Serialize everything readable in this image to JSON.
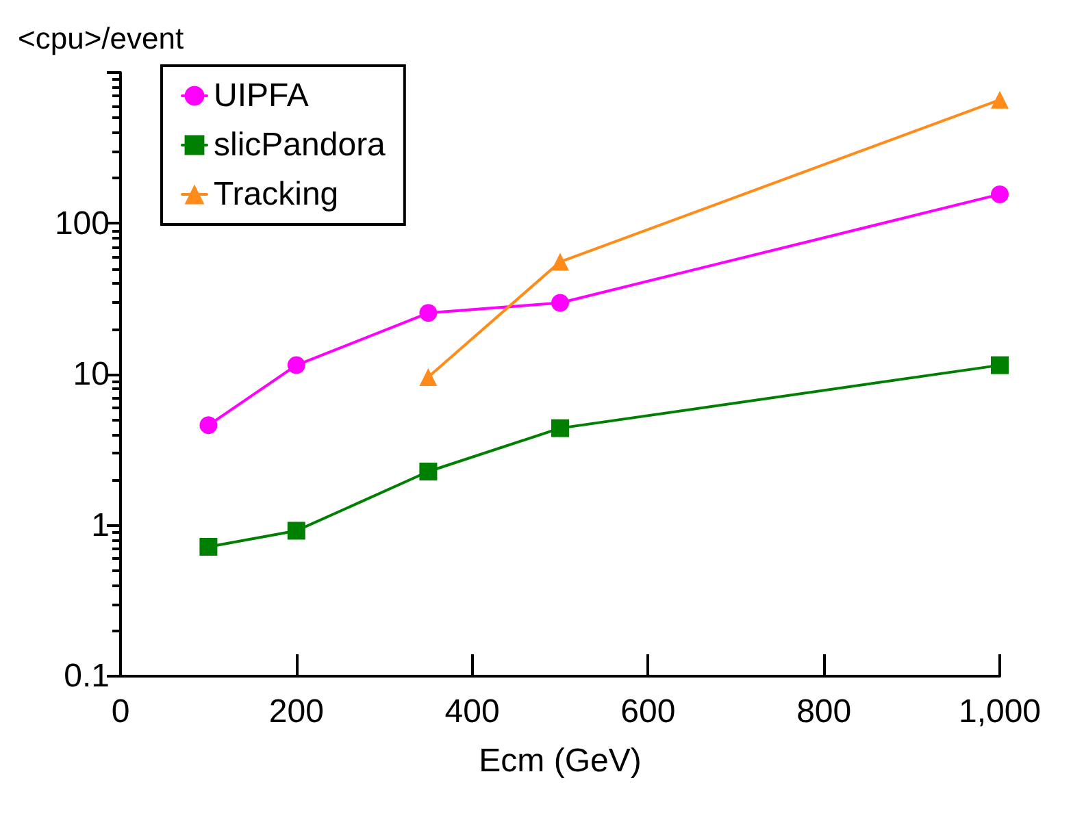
{
  "chart_data": {
    "type": "line",
    "ylabel": "<cpu>/event",
    "xlabel": "Ecm (GeV)",
    "x": [
      100,
      200,
      350,
      500,
      1000
    ],
    "log": "y",
    "grid": false,
    "legend": "top left",
    "xlim": [
      0,
      1000
    ],
    "xticks": [
      0,
      200,
      400,
      600,
      800,
      {
        "value": 1000,
        "label": "1,000"
      }
    ],
    "ylim": [
      0.1,
      1000
    ],
    "yticks": [
      0.1,
      1,
      10,
      100,
      {
        "value": 1000,
        "label": null
      }
    ],
    "line_style": "solid",
    "series": [
      {
        "name": "UIPFA",
        "color": "#ff00ff",
        "marker": "circle",
        "values": [
          4.6,
          11.5,
          25.5,
          29.8,
          156
        ]
      },
      {
        "name": "slicPandora",
        "color": "#008000",
        "marker": "square",
        "values": [
          0.72,
          0.92,
          2.27,
          4.4,
          11.5
        ]
      },
      {
        "name": "Tracking",
        "color": "#ff8c1a",
        "marker": "triangle",
        "values": [
          null,
          null,
          9.6,
          55.7,
          660
        ]
      }
    ]
  }
}
